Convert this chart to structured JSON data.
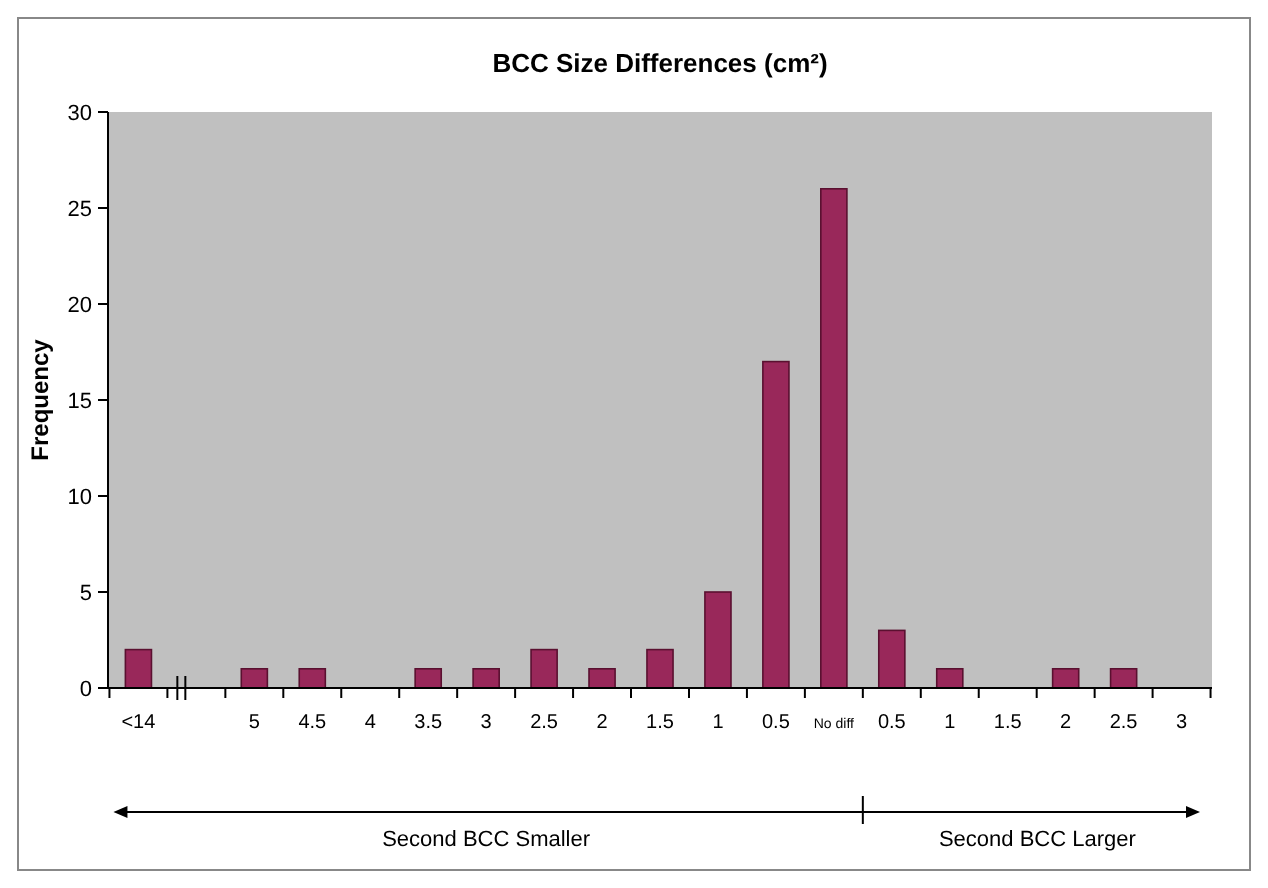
{
  "chart_data": {
    "type": "bar",
    "title": "BCC Size Differences (cm²)",
    "ylabel": "Frequency",
    "categories": [
      "<14",
      null,
      "5",
      "4.5",
      "4",
      "3.5",
      "3",
      "2.5",
      "2",
      "1.5",
      "1",
      "0.5",
      "No diff",
      "0.5",
      "1",
      "1.5",
      "2",
      "2.5",
      "3"
    ],
    "values": [
      2,
      0,
      1,
      1,
      0,
      1,
      1,
      2,
      1,
      2,
      5,
      17,
      26,
      3,
      1,
      0,
      1,
      1,
      0
    ],
    "color": "#99285a",
    "ylim": [
      0,
      30
    ],
    "yticks": [
      0,
      5,
      10,
      15,
      20,
      25,
      30
    ],
    "grid": false,
    "annotations": [
      "Second BCC Smaller",
      "Second BCC Larger"
    ]
  }
}
